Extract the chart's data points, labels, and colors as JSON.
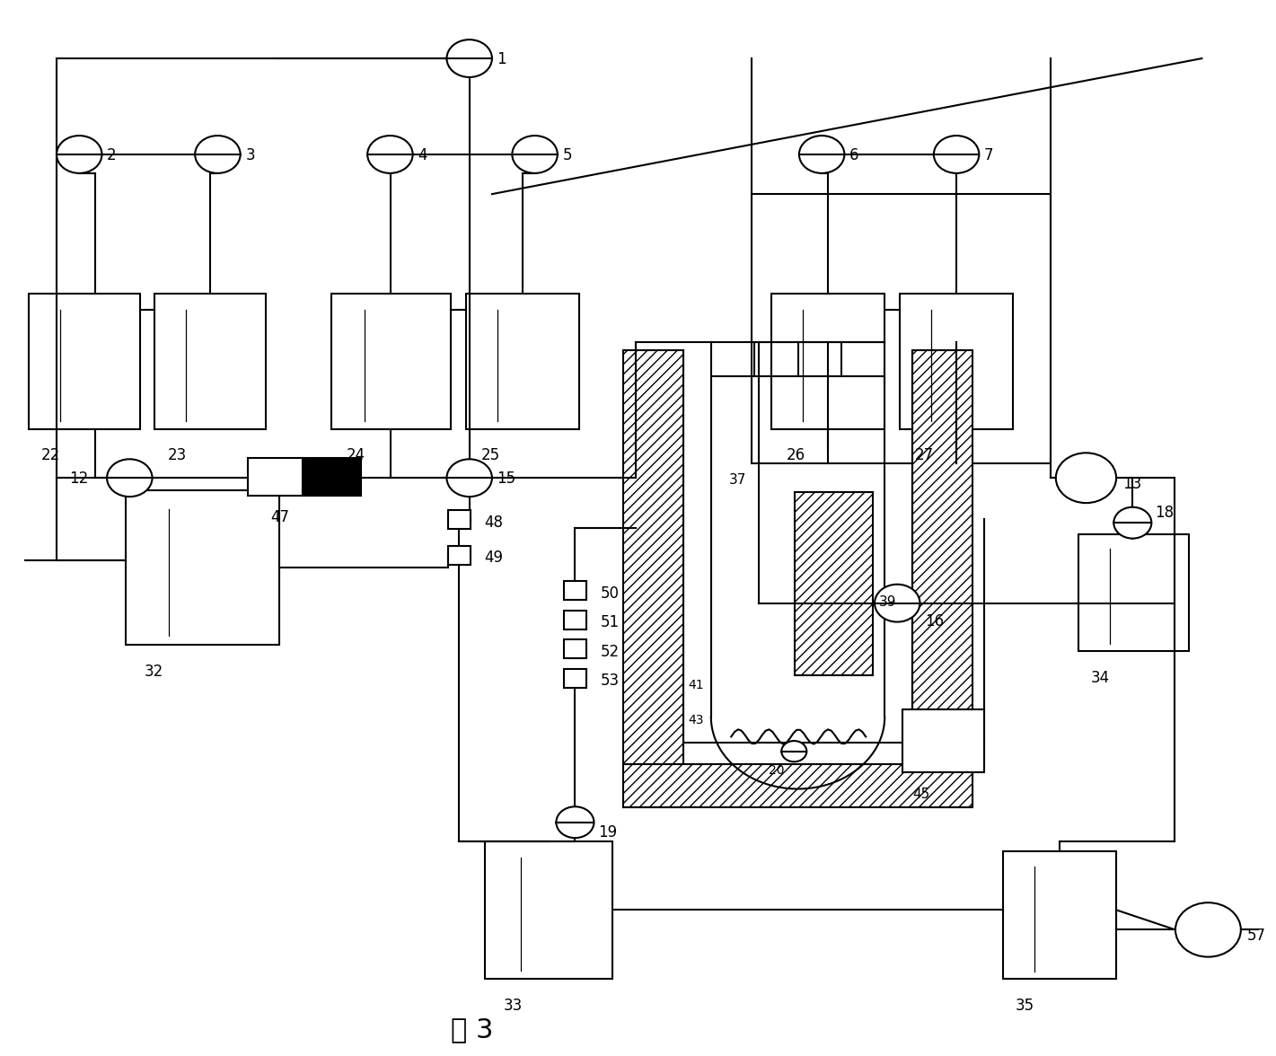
{
  "bg": "#ffffff",
  "lc": "#000000",
  "lw": 1.5,
  "title": "图 3"
}
